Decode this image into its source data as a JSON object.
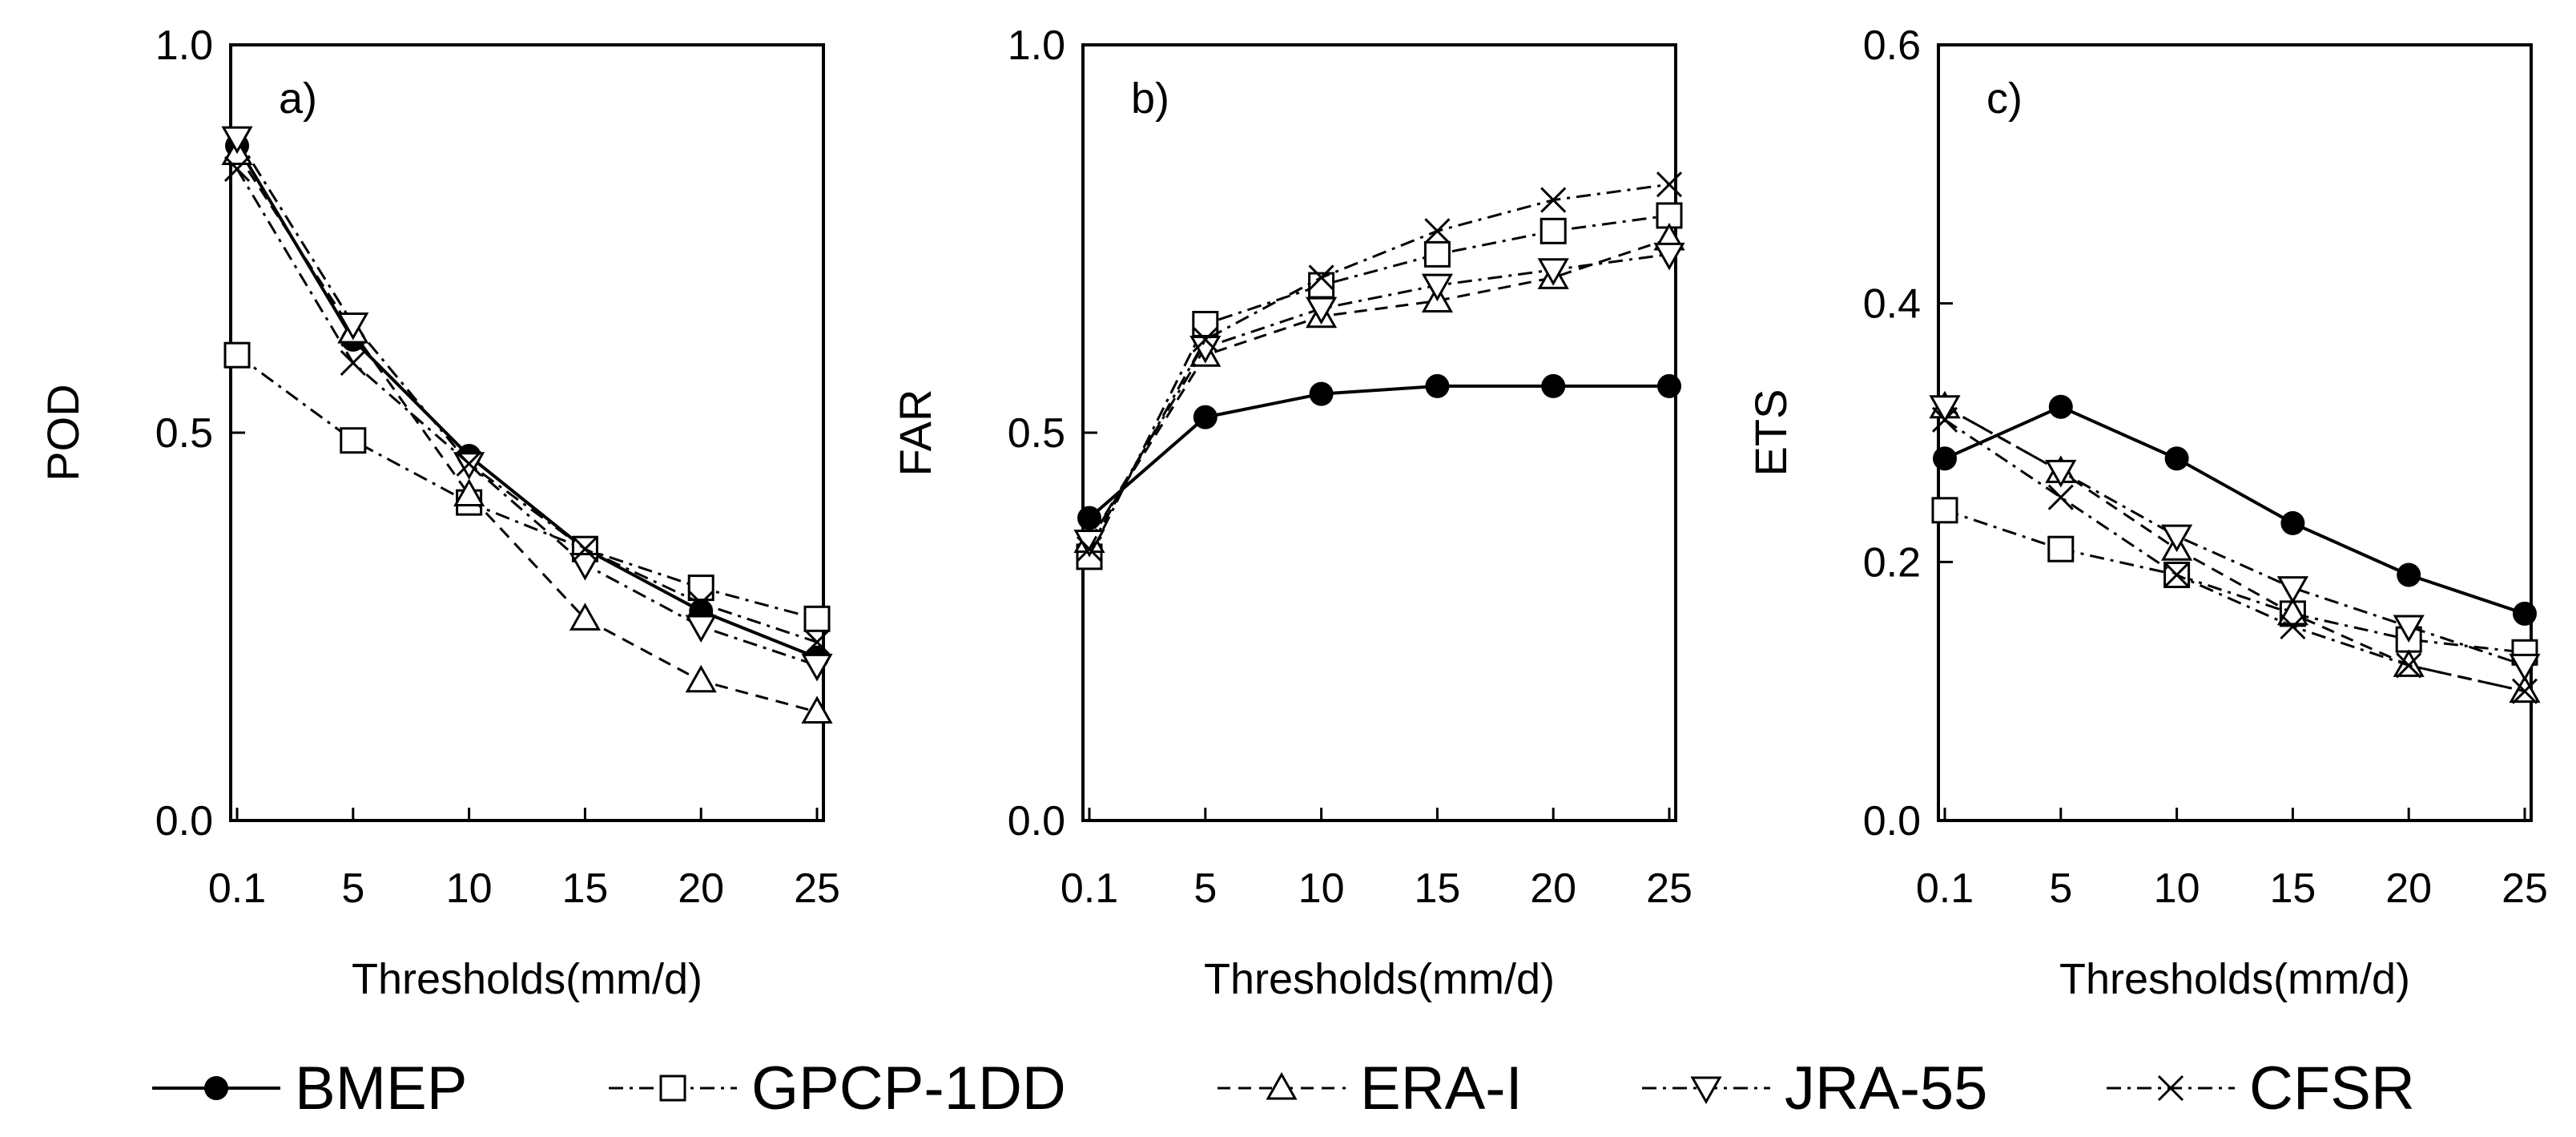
{
  "chart_data": [
    {
      "type": "line",
      "panel_label": "a)",
      "ylabel": "POD",
      "xlabel": "Thresholds(mm/d)",
      "categories": [
        "0.1",
        "5",
        "10",
        "15",
        "20",
        "25"
      ],
      "ylim": [
        0,
        1.0
      ],
      "yticks": [
        "0.0",
        "0.5",
        "1.0"
      ],
      "series": [
        {
          "name": "BMEP",
          "values": [
            0.87,
            0.62,
            0.47,
            0.35,
            0.27,
            0.21
          ]
        },
        {
          "name": "GPCP-1DD",
          "values": [
            0.6,
            0.49,
            0.41,
            0.35,
            0.3,
            0.26
          ]
        },
        {
          "name": "ERA-I",
          "values": [
            0.86,
            0.63,
            0.42,
            0.26,
            0.18,
            0.14
          ]
        },
        {
          "name": "JRA-55",
          "values": [
            0.88,
            0.64,
            0.46,
            0.33,
            0.25,
            0.2
          ]
        },
        {
          "name": "CFSR",
          "values": [
            0.84,
            0.59,
            0.46,
            0.35,
            0.28,
            0.23
          ]
        }
      ]
    },
    {
      "type": "line",
      "panel_label": "b)",
      "ylabel": "FAR",
      "xlabel": "Thresholds(mm/d)",
      "categories": [
        "0.1",
        "5",
        "10",
        "15",
        "20",
        "25"
      ],
      "ylim": [
        0,
        1.0
      ],
      "yticks": [
        "0.0",
        "0.5",
        "1.0"
      ],
      "series": [
        {
          "name": "BMEP",
          "values": [
            0.39,
            0.52,
            0.55,
            0.56,
            0.56,
            0.56
          ]
        },
        {
          "name": "GPCP-1DD",
          "values": [
            0.34,
            0.64,
            0.69,
            0.73,
            0.76,
            0.78
          ]
        },
        {
          "name": "ERA-I",
          "values": [
            0.36,
            0.6,
            0.65,
            0.67,
            0.7,
            0.75
          ]
        },
        {
          "name": "JRA-55",
          "values": [
            0.36,
            0.61,
            0.66,
            0.69,
            0.71,
            0.73
          ]
        },
        {
          "name": "CFSR",
          "values": [
            0.35,
            0.62,
            0.7,
            0.76,
            0.8,
            0.82
          ]
        }
      ]
    },
    {
      "type": "line",
      "panel_label": "c)",
      "ylabel": "ETS",
      "xlabel": "Thresholds(mm/d)",
      "categories": [
        "0.1",
        "5",
        "10",
        "15",
        "20",
        "25"
      ],
      "ylim": [
        0,
        0.6
      ],
      "yticks": [
        "0.0",
        "0.2",
        "0.4",
        "0.6"
      ],
      "series": [
        {
          "name": "BMEP",
          "values": [
            0.28,
            0.32,
            0.28,
            0.23,
            0.19,
            0.16
          ]
        },
        {
          "name": "GPCP-1DD",
          "values": [
            0.24,
            0.21,
            0.19,
            0.16,
            0.14,
            0.13
          ]
        },
        {
          "name": "ERA-I",
          "values": [
            0.32,
            0.27,
            0.21,
            0.16,
            0.12,
            0.1
          ]
        },
        {
          "name": "JRA-55",
          "values": [
            0.32,
            0.27,
            0.22,
            0.18,
            0.15,
            0.12
          ]
        },
        {
          "name": "CFSR",
          "values": [
            0.31,
            0.25,
            0.19,
            0.15,
            0.12,
            0.1
          ]
        }
      ]
    }
  ],
  "legend": [
    {
      "name": "BMEP",
      "marker": "filled-circle",
      "line": "solid"
    },
    {
      "name": "GPCP-1DD",
      "marker": "open-square",
      "line": "dash-dot"
    },
    {
      "name": "ERA-I",
      "marker": "open-triangle-up",
      "line": "dashed"
    },
    {
      "name": "JRA-55",
      "marker": "open-triangle-down",
      "line": "dash-dot"
    },
    {
      "name": "CFSR",
      "marker": "x-cross",
      "line": "dash-dot"
    }
  ],
  "legend_placement": "bottom",
  "grid": false
}
